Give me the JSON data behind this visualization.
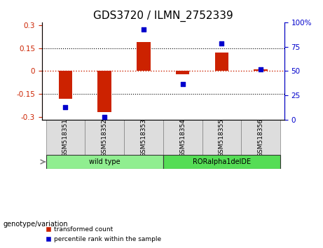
{
  "title": "GDS3720 / ILMN_2752339",
  "samples": [
    "GSM518351",
    "GSM518352",
    "GSM518353",
    "GSM518354",
    "GSM518355",
    "GSM518356"
  ],
  "bar_values": [
    -0.18,
    -0.27,
    0.19,
    -0.02,
    0.12,
    0.01
  ],
  "percentile_values": [
    13,
    3,
    93,
    37,
    78,
    52
  ],
  "ylim_left": [
    -0.32,
    0.32
  ],
  "ylim_right": [
    0,
    100
  ],
  "yticks_left": [
    -0.3,
    -0.15,
    0,
    0.15,
    0.3
  ],
  "yticks_right": [
    0,
    25,
    50,
    75,
    100
  ],
  "hlines": [
    -0.15,
    0,
    0.15
  ],
  "bar_color": "#CC2200",
  "dot_color": "#0000CC",
  "bar_width": 0.35,
  "genotype_groups": [
    {
      "label": "wild type",
      "samples": [
        0,
        1,
        2
      ],
      "color": "#90EE90"
    },
    {
      "label": "RORalpha1delDE",
      "samples": [
        3,
        4,
        5
      ],
      "color": "#55DD55"
    }
  ],
  "genotype_label": "genotype/variation",
  "legend_bar_label": "transformed count",
  "legend_dot_label": "percentile rank within the sample",
  "title_fontsize": 11,
  "tick_fontsize": 7.5,
  "label_fontsize": 7.5
}
